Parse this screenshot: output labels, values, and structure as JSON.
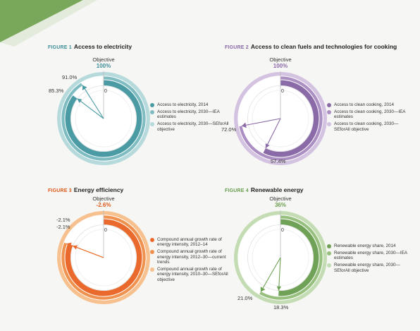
{
  "chart_data": [
    {
      "type": "donut",
      "figure_label": "FIGURE 1",
      "title": "Access to electricity",
      "objective_label": "Objective",
      "objective_value": "100%",
      "zero_label": "0",
      "value_labels": [
        "91.0%",
        "85.3%"
      ],
      "series": [
        {
          "name": "Access to electricity, 2014",
          "value": 85.3
        },
        {
          "name": "Access to electricity, 2030—IEA estimates",
          "value": 91.0
        },
        {
          "name": "Access to electricity, 2030—SEforAll objective",
          "value": 100
        }
      ],
      "colors": {
        "dark": "#4a9ba3",
        "mid": "#7ebcc2",
        "light": "#b6d9dc",
        "label": "#3e8e96",
        "needle": "#4a9ba3"
      }
    },
    {
      "type": "donut",
      "figure_label": "FIGURE 2",
      "title": "Access to clean fuels and technologies for cooking",
      "objective_label": "Objective",
      "objective_value": "100%",
      "zero_label": "0",
      "value_labels": [
        "72.0%",
        "57.4%"
      ],
      "series": [
        {
          "name": "Access to clean cooking, 2014",
          "value": 57.4
        },
        {
          "name": "Access to clean cooking, 2030—IEA estimates",
          "value": 72.0
        },
        {
          "name": "Access to clean cooking, 2030—SEforAll objective",
          "value": 100
        }
      ],
      "colors": {
        "dark": "#8b6aa8",
        "mid": "#ab8fc3",
        "light": "#d3c2e0",
        "label": "#8b6aa8",
        "needle": "#8b6aa8"
      }
    },
    {
      "type": "donut",
      "figure_label": "FIGURE 3",
      "title": "Energy efficiency",
      "objective_label": "Objective",
      "objective_value": "-2.6%",
      "zero_label": "0",
      "value_labels": [
        "-2.1%",
        "-2.1%"
      ],
      "series": [
        {
          "name": "Compound annual growth rate of energy intensity, 2012–14",
          "value": -2.1
        },
        {
          "name": "Compound annual growth rate of energy intensity, 2012–30—current trends",
          "value": -2.1
        },
        {
          "name": "Compound annual growth rate of energy intensity, 2010–30—SEforAll objective",
          "value": -2.6
        }
      ],
      "colors": {
        "dark": "#e96a2c",
        "mid": "#f0924f",
        "light": "#f7c08f",
        "label": "#e05a1c",
        "needle": "#e96a2c"
      }
    },
    {
      "type": "donut",
      "figure_label": "FIGURE 4",
      "title": "Renewable energy",
      "objective_label": "Objective",
      "objective_value": "36%",
      "zero_label": "0",
      "value_labels": [
        "21.0%",
        "18.3%"
      ],
      "series": [
        {
          "name": "Renewable energy share, 2014",
          "value": 18.3
        },
        {
          "name": "Renewable energy share, 2030—IEA estimates",
          "value": 21.0
        },
        {
          "name": "Renewable energy share, 2030—SEforAll objective",
          "value": 36
        }
      ],
      "colors": {
        "dark": "#6fa257",
        "mid": "#97c07f",
        "light": "#c4dcb3",
        "label": "#6a9e50",
        "needle": "#6fa257"
      }
    }
  ],
  "decoration": {
    "corner_color": "#7aa85a"
  }
}
